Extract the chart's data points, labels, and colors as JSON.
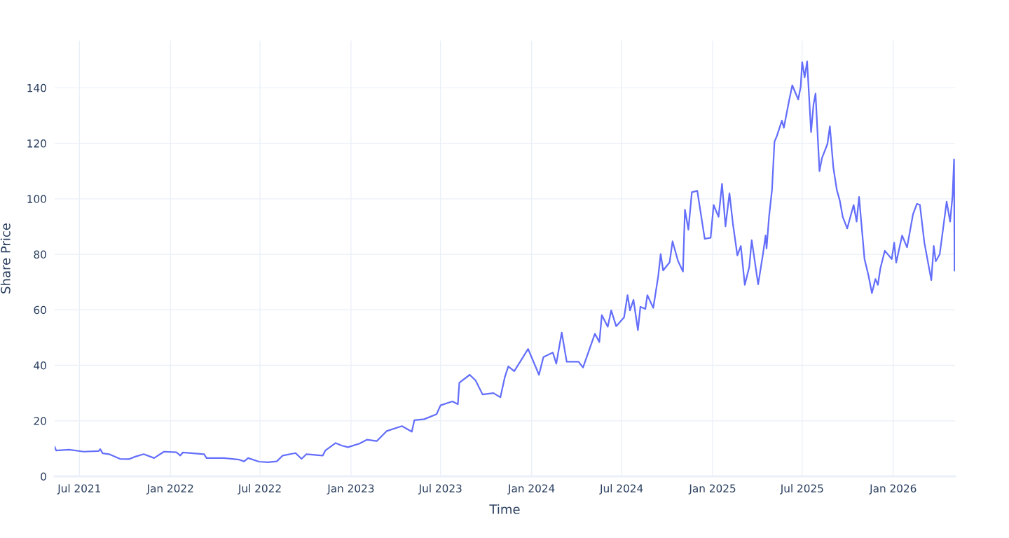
{
  "chart_data": {
    "type": "line",
    "xlabel": "Time",
    "ylabel": "Share Price",
    "xlim": [
      "2021-05-12",
      "2026-05-06"
    ],
    "ylim": [
      0,
      157
    ],
    "xticks": [
      {
        "value": "2021-07-01",
        "label": "Jul 2021"
      },
      {
        "value": "2022-01-01",
        "label": "Jan 2022"
      },
      {
        "value": "2022-07-01",
        "label": "Jul 2022"
      },
      {
        "value": "2023-01-01",
        "label": "Jan 2023"
      },
      {
        "value": "2023-07-01",
        "label": "Jul 2023"
      },
      {
        "value": "2024-01-01",
        "label": "Jan 2024"
      },
      {
        "value": "2024-07-01",
        "label": "Jul 2024"
      },
      {
        "value": "2025-01-01",
        "label": "Jan 2025"
      },
      {
        "value": "2025-07-01",
        "label": "Jul 2025"
      },
      {
        "value": "2026-01-01",
        "label": "Jan 2026"
      }
    ],
    "yticks": [
      0,
      20,
      40,
      60,
      80,
      100,
      120,
      140
    ],
    "grid": true,
    "marker": "none",
    "line_style": "solid",
    "x": [
      "2021-05-12",
      "2021-05-15",
      "2021-06-10",
      "2021-07-10",
      "2021-08-09",
      "2021-08-12",
      "2021-08-17",
      "2021-08-30",
      "2021-09-21",
      "2021-10-09",
      "2021-10-22",
      "2021-11-08",
      "2021-11-29",
      "2021-12-19",
      "2022-01-13",
      "2022-01-21",
      "2022-01-26",
      "2022-03-10",
      "2022-03-15",
      "2022-04-19",
      "2022-05-20",
      "2022-05-30",
      "2022-06-07",
      "2022-06-29",
      "2022-07-17",
      "2022-08-04",
      "2022-08-16",
      "2022-09-11",
      "2022-09-23",
      "2022-10-03",
      "2022-11-05",
      "2022-11-10",
      "2022-12-01",
      "2022-12-13",
      "2022-12-26",
      "2023-01-18",
      "2023-02-02",
      "2023-02-22",
      "2023-03-14",
      "2023-04-14",
      "2023-05-04",
      "2023-05-09",
      "2023-05-29",
      "2023-06-23",
      "2023-07-01",
      "2023-07-25",
      "2023-08-05",
      "2023-08-08",
      "2023-08-29",
      "2023-09-10",
      "2023-09-24",
      "2023-10-16",
      "2023-10-30",
      "2023-11-08",
      "2023-11-15",
      "2023-11-27",
      "2023-12-25",
      "2024-01-16",
      "2024-01-25",
      "2024-02-13",
      "2024-02-20",
      "2024-03-02",
      "2024-03-12",
      "2024-04-05",
      "2024-04-14",
      "2024-05-08",
      "2024-05-17",
      "2024-05-22",
      "2024-06-03",
      "2024-06-10",
      "2024-06-20",
      "2024-07-06",
      "2024-07-13",
      "2024-07-18",
      "2024-07-25",
      "2024-08-03",
      "2024-08-08",
      "2024-08-18",
      "2024-08-22",
      "2024-09-03",
      "2024-09-13",
      "2024-09-18",
      "2024-09-23",
      "2024-10-06",
      "2024-10-12",
      "2024-10-23",
      "2024-11-02",
      "2024-11-06",
      "2024-11-13",
      "2024-11-20",
      "2024-12-01",
      "2024-12-16",
      "2024-12-28",
      "2025-01-03",
      "2025-01-13",
      "2025-01-20",
      "2025-01-27",
      "2025-02-04",
      "2025-02-11",
      "2025-02-20",
      "2025-02-27",
      "2025-03-07",
      "2025-03-16",
      "2025-03-21",
      "2025-04-03",
      "2025-04-13",
      "2025-04-18",
      "2025-04-20",
      "2025-04-25",
      "2025-05-01",
      "2025-05-06",
      "2025-05-11",
      "2025-05-21",
      "2025-05-25",
      "2025-06-04",
      "2025-06-11",
      "2025-06-23",
      "2025-06-28",
      "2025-07-01",
      "2025-07-06",
      "2025-07-11",
      "2025-07-19",
      "2025-07-24",
      "2025-07-28",
      "2025-08-05",
      "2025-08-10",
      "2025-08-21",
      "2025-08-26",
      "2025-09-02",
      "2025-09-09",
      "2025-09-15",
      "2025-09-21",
      "2025-09-30",
      "2025-10-13",
      "2025-10-19",
      "2025-10-24",
      "2025-11-04",
      "2025-11-12",
      "2025-11-19",
      "2025-11-26",
      "2025-12-01",
      "2025-12-06",
      "2025-12-15",
      "2025-12-29",
      "2026-01-03",
      "2026-01-07",
      "2026-01-19",
      "2026-01-29",
      "2026-02-10",
      "2026-02-18",
      "2026-02-24",
      "2026-03-05",
      "2026-03-19",
      "2026-03-24",
      "2026-03-28",
      "2026-04-05",
      "2026-04-19",
      "2026-04-26",
      "2026-05-01",
      "2026-05-04",
      "2026-05-05"
    ],
    "series": [
      {
        "color": "#636efa",
        "values": [
          10.7,
          9.3,
          9.6,
          8.9,
          9.1,
          9.8,
          8.3,
          8.0,
          6.3,
          6.2,
          7.1,
          8.0,
          6.6,
          8.9,
          8.7,
          7.5,
          8.6,
          8.0,
          6.6,
          6.6,
          6.0,
          5.4,
          6.6,
          5.3,
          5.1,
          5.4,
          7.5,
          8.4,
          6.3,
          8.0,
          7.5,
          9.3,
          12.0,
          11.1,
          10.5,
          11.8,
          13.2,
          12.7,
          16.3,
          18.1,
          16.1,
          20.2,
          20.6,
          22.4,
          25.6,
          27,
          26,
          33.7,
          36.6,
          34.5,
          29.5,
          30,
          28.5,
          35.8,
          39.6,
          37.9,
          45.9,
          36.6,
          43,
          44.6,
          40.6,
          51.8,
          41.3,
          41.3,
          39.2,
          51.4,
          48.4,
          58.1,
          53.9,
          59.8,
          54.1,
          57.3,
          65.3,
          59.8,
          63.6,
          52.7,
          61.1,
          60.3,
          65.3,
          60.7,
          72.1,
          80.1,
          74.2,
          77.1,
          84.7,
          77.6,
          73.8,
          96.1,
          88.9,
          102.4,
          102.9,
          85.6,
          86,
          97.8,
          93.5,
          105.4,
          90.1,
          102,
          91,
          79.6,
          83,
          69,
          75.4,
          85.1,
          69.2,
          80.4,
          86.8,
          82.1,
          93.5,
          103.2,
          120.6,
          122.7,
          128.2,
          125.6,
          134.9,
          140.9,
          135.8,
          140.4,
          149.3,
          143.8,
          149.5,
          124,
          134.1,
          137.9,
          110,
          114.7,
          119.7,
          126.1,
          111.3,
          103.2,
          99.4,
          93.5,
          89.3,
          97.8,
          91.8,
          100.7,
          78.3,
          72.4,
          66,
          71.1,
          69,
          74.9,
          81.3,
          78.3,
          84.2,
          77,
          86.8,
          82.5,
          94.4,
          98.2,
          97.8,
          84.2,
          70.7,
          83,
          77.5,
          80,
          99,
          91.8,
          101.1,
          114.2,
          74.1
        ]
      }
    ]
  }
}
